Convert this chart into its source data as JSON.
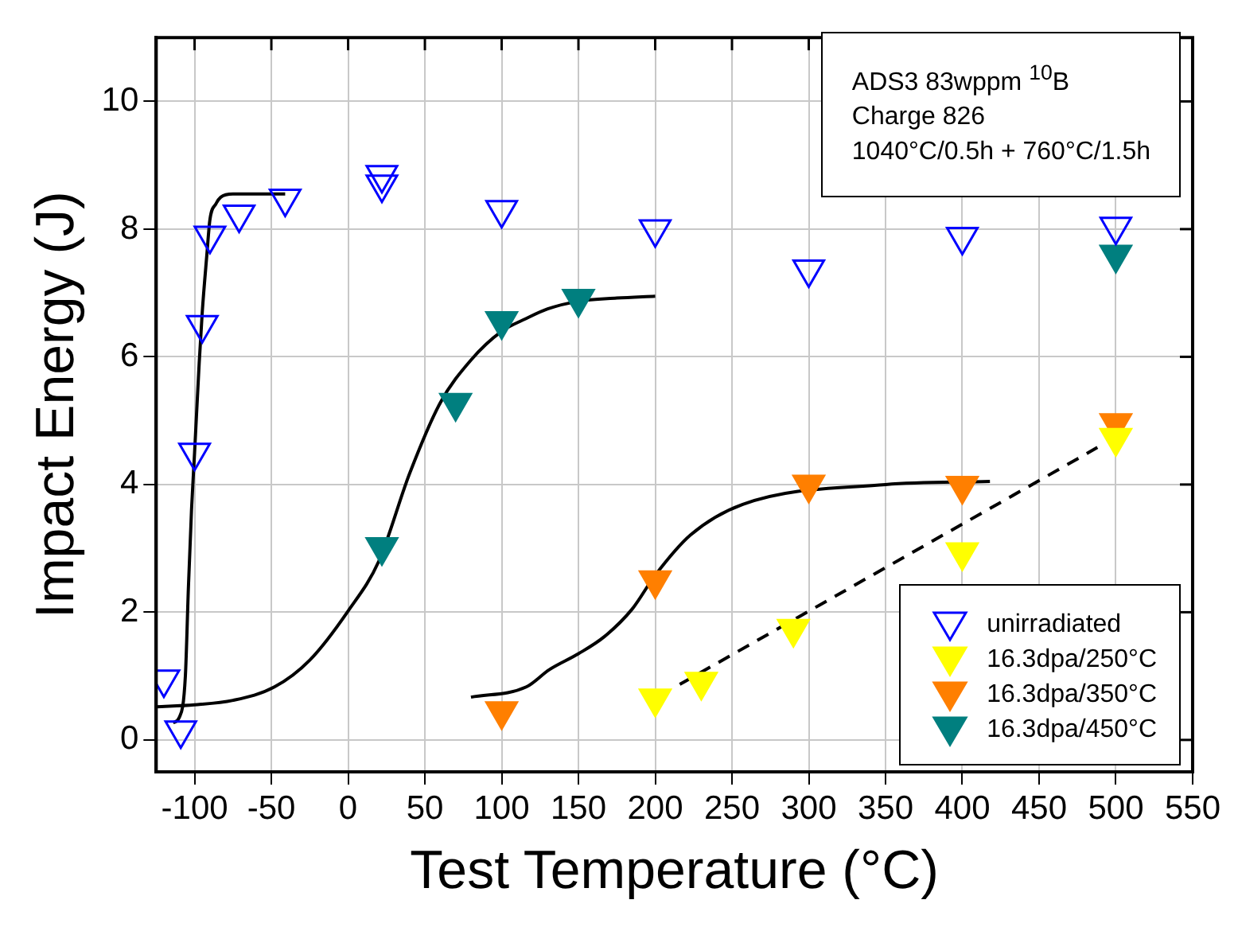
{
  "chart_data": {
    "type": "scatter",
    "xlabel": "Test Temperature (°C)",
    "ylabel": "Impact Energy (J)",
    "xlim": [
      -125,
      550
    ],
    "xticks": [
      -100,
      -50,
      0,
      50,
      100,
      150,
      200,
      250,
      300,
      350,
      400,
      450,
      500,
      550
    ],
    "ylim": [
      -0.5,
      11
    ],
    "yticks": [
      0,
      2,
      4,
      6,
      8,
      10
    ],
    "grid": true,
    "legend": "bottom right",
    "marker": "triangle",
    "annotations": [
      "ADS3 83wppm $^{10}$B",
      "Charge 826",
      "1040°C/0.5h + 760°C/1.5h"
    ],
    "series": [
      {
        "name": "unirradiated",
        "color": "#0000ff",
        "marker": "triangle-open",
        "x": [
          -120,
          -109,
          -100,
          -95,
          -90,
          -71,
          -41,
          22,
          22,
          100,
          200,
          300,
          400,
          500
        ],
        "values": [
          0.95,
          0.15,
          4.5,
          6.5,
          7.9,
          8.23,
          8.48,
          8.85,
          8.7,
          8.3,
          8.0,
          7.37,
          7.88,
          8.04
        ]
      },
      {
        "name": "16.3dpa/250°C",
        "color": "#ffff00",
        "x": [
          200,
          230,
          290,
          400,
          500
        ],
        "values": [
          0.65,
          0.91,
          1.74,
          2.94,
          4.73
        ]
      },
      {
        "name": "16.3dpa/350°C",
        "color": "#ff7f00",
        "x": [
          100,
          200,
          300,
          400,
          500
        ],
        "values": [
          0.45,
          2.5,
          4.0,
          3.98,
          4.96
        ]
      },
      {
        "name": "16.3dpa/450°C",
        "color": "#007f7f",
        "x": [
          22,
          70,
          100,
          150,
          500
        ],
        "values": [
          3.02,
          5.28,
          6.56,
          6.91,
          7.6
        ]
      },
      {
        "type": "line",
        "color": "#000000",
        "marker": "none",
        "x": [
          -114,
          -110,
          -106,
          -104,
          -102,
          -100,
          -97,
          -95,
          -92,
          -90,
          -86,
          -83,
          -75,
          -60,
          -41
        ],
        "values": [
          0.27,
          0.35,
          1.0,
          2.4,
          3.6,
          4.5,
          5.9,
          6.7,
          7.6,
          8.15,
          8.4,
          8.5,
          8.55,
          8.55,
          8.55
        ]
      },
      {
        "type": "line",
        "color": "#000000",
        "marker": "none",
        "x": [
          -125,
          -100,
          -75,
          -48,
          -25,
          0,
          20,
          40,
          60,
          80,
          100,
          116,
          130,
          150,
          175,
          200
        ],
        "values": [
          0.52,
          0.55,
          0.62,
          0.83,
          1.25,
          2.02,
          2.8,
          4.17,
          5.28,
          5.95,
          6.4,
          6.6,
          6.75,
          6.87,
          6.92,
          6.95
        ]
      },
      {
        "type": "line",
        "color": "#000000",
        "marker": "none",
        "x": [
          80,
          116,
          131,
          150,
          167,
          185,
          200,
          223,
          257,
          350,
          418
        ],
        "values": [
          0.67,
          0.83,
          1.1,
          1.35,
          1.62,
          2.05,
          2.58,
          3.21,
          3.69,
          4.0,
          4.05
        ]
      },
      {
        "type": "line",
        "color": "#000000",
        "marker": "none",
        "line_style": "dashed",
        "x": [
          216,
          488
        ],
        "values": [
          0.87,
          4.58
        ]
      }
    ]
  }
}
